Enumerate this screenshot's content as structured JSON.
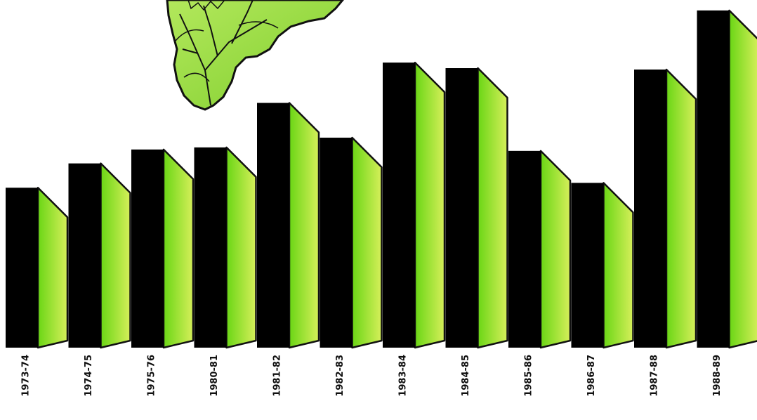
{
  "chart_data": {
    "type": "bar",
    "title": "",
    "xlabel": "",
    "ylabel": "",
    "categories": [
      "1973-74",
      "1974-75",
      "1975-76",
      "1980-81",
      "1981-82",
      "1982-83",
      "1983-84",
      "1984-85",
      "1985-86",
      "1986-87",
      "1987-88",
      "1988-89"
    ],
    "values": [
      230,
      265,
      285,
      288,
      352,
      302,
      410,
      402,
      283,
      237,
      400,
      485
    ],
    "ylim": [
      0,
      500
    ],
    "grid": false,
    "legend": "none",
    "colors": {
      "bar_front": "#000000",
      "bar_side_dark": "#6ad615",
      "bar_side_light": "#d6ef5a",
      "outline": "#111111",
      "leaf_light": "#b3e85c",
      "leaf_dark": "#7fce2d"
    }
  },
  "decorations": {
    "illustration": "sunflower-leaf-illustration"
  }
}
